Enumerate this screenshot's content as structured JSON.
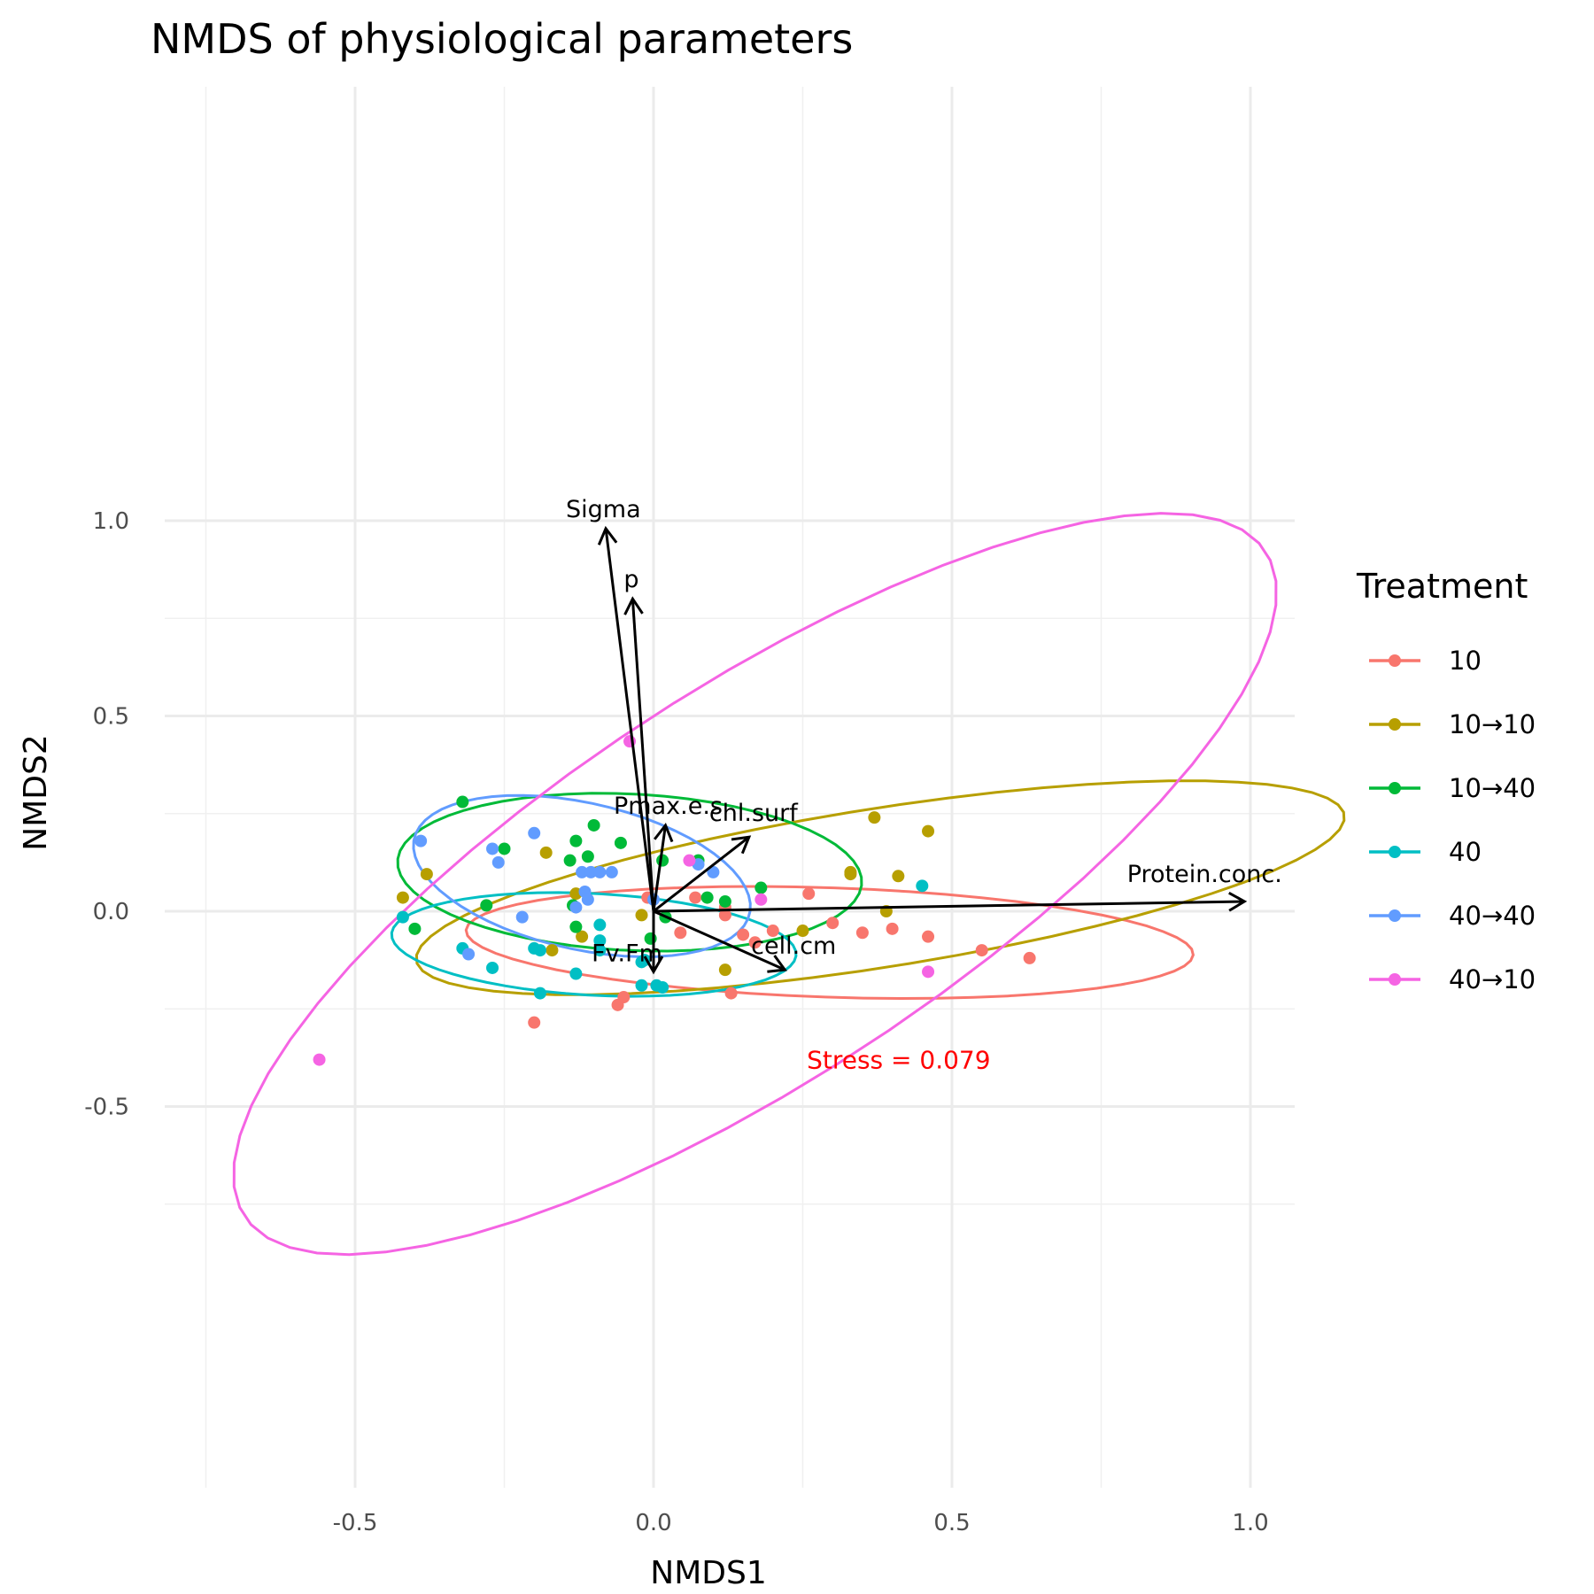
{
  "chart_data": {
    "type": "scatter",
    "title": "NMDS of physiological parameters",
    "xlabel": "NMDS1",
    "ylabel": "NMDS2",
    "xlim": [
      -0.75,
      1.07
    ],
    "ylim": [
      -0.72,
      1.05
    ],
    "x_ticks": [
      -0.5,
      0.0,
      0.5,
      1.0
    ],
    "x_tick_labels": [
      "-0.5",
      "0.0",
      "0.5",
      "1.0"
    ],
    "y_ticks": [
      -0.5,
      0.0,
      0.5,
      1.0
    ],
    "y_tick_labels": [
      "-0.5",
      "0.0",
      "0.5",
      "1.0"
    ],
    "grid": true,
    "legend": {
      "title": "Treatment",
      "position": "right"
    },
    "annotation": {
      "text": "Stress = 0.079",
      "x": 0.42,
      "y": -0.38,
      "color": "#ff0000"
    },
    "vectors": [
      {
        "label": "Sigma",
        "x": -0.08,
        "y": 0.98
      },
      {
        "label": "p",
        "x": -0.035,
        "y": 0.8
      },
      {
        "label": "Pmax.e.s",
        "x": 0.02,
        "y": 0.22
      },
      {
        "label": "chl.surf",
        "x": 0.16,
        "y": 0.19
      },
      {
        "label": "Protein.conc.",
        "x": 0.99,
        "y": 0.025
      },
      {
        "label": "Fv.Fm",
        "x": 0.0,
        "y": -0.155
      },
      {
        "label": "cell.cm",
        "x": 0.22,
        "y": -0.15
      }
    ],
    "series": [
      {
        "name": "10",
        "color": "#F8766D",
        "ellipse": {
          "cx": 0.295,
          "cy": -0.08,
          "rx": 0.61,
          "ry": 0.14,
          "angle": -3
        },
        "points": [
          [
            -0.01,
            0.035
          ],
          [
            0.07,
            0.035
          ],
          [
            0.12,
            0.01
          ],
          [
            0.12,
            -0.01
          ],
          [
            0.045,
            -0.055
          ],
          [
            0.15,
            -0.06
          ],
          [
            0.17,
            -0.08
          ],
          [
            0.2,
            -0.05
          ],
          [
            0.26,
            0.045
          ],
          [
            0.3,
            -0.03
          ],
          [
            0.35,
            -0.055
          ],
          [
            0.4,
            -0.045
          ],
          [
            0.46,
            -0.065
          ],
          [
            0.55,
            -0.1
          ],
          [
            0.63,
            -0.12
          ],
          [
            0.13,
            -0.21
          ],
          [
            -0.05,
            -0.22
          ],
          [
            -0.06,
            -0.24
          ],
          [
            -0.2,
            -0.285
          ]
        ]
      },
      {
        "name": "10→10",
        "color": "#B79F00",
        "ellipse": {
          "cx": 0.38,
          "cy": 0.06,
          "rx": 0.8,
          "ry": 0.2,
          "angle": 14
        },
        "points": [
          [
            0.37,
            0.24
          ],
          [
            0.46,
            0.205
          ],
          [
            0.33,
            0.1
          ],
          [
            0.33,
            0.095
          ],
          [
            0.41,
            0.09
          ],
          [
            0.39,
            0.0
          ],
          [
            0.25,
            -0.05
          ],
          [
            0.12,
            -0.15
          ],
          [
            -0.02,
            -0.01
          ],
          [
            -0.13,
            0.045
          ],
          [
            -0.12,
            -0.065
          ],
          [
            -0.17,
            -0.1
          ],
          [
            -0.18,
            0.15
          ],
          [
            -0.42,
            0.035
          ],
          [
            -0.38,
            0.095
          ]
        ]
      },
      {
        "name": "10→40",
        "color": "#00BA38",
        "ellipse": {
          "cx": -0.04,
          "cy": 0.1,
          "rx": 0.39,
          "ry": 0.2,
          "angle": -5
        },
        "points": [
          [
            -0.32,
            0.28
          ],
          [
            -0.1,
            0.22
          ],
          [
            -0.13,
            0.18
          ],
          [
            -0.055,
            0.175
          ],
          [
            -0.25,
            0.16
          ],
          [
            -0.11,
            0.14
          ],
          [
            -0.14,
            0.13
          ],
          [
            0.015,
            0.13
          ],
          [
            0.075,
            0.13
          ],
          [
            0.18,
            0.06
          ],
          [
            0.09,
            0.035
          ],
          [
            0.12,
            0.025
          ],
          [
            -0.135,
            0.015
          ],
          [
            -0.28,
            0.015
          ],
          [
            0.02,
            -0.015
          ],
          [
            -0.13,
            -0.04
          ],
          [
            -0.4,
            -0.045
          ],
          [
            -0.005,
            -0.07
          ]
        ]
      },
      {
        "name": "40",
        "color": "#00BFC4",
        "ellipse": {
          "cx": -0.1,
          "cy": -0.085,
          "rx": 0.34,
          "ry": 0.13,
          "angle": -5
        },
        "points": [
          [
            0.45,
            0.065
          ],
          [
            -0.42,
            -0.015
          ],
          [
            -0.09,
            -0.035
          ],
          [
            -0.09,
            -0.075
          ],
          [
            -0.32,
            -0.095
          ],
          [
            -0.2,
            -0.095
          ],
          [
            -0.19,
            -0.1
          ],
          [
            -0.09,
            -0.1
          ],
          [
            -0.27,
            -0.145
          ],
          [
            -0.13,
            -0.16
          ],
          [
            -0.02,
            -0.13
          ],
          [
            -0.015,
            -0.125
          ],
          [
            -0.02,
            -0.19
          ],
          [
            0.005,
            -0.19
          ],
          [
            0.015,
            -0.195
          ],
          [
            -0.19,
            -0.21
          ]
        ]
      },
      {
        "name": "40→40",
        "color": "#619CFF",
        "ellipse": {
          "cx": -0.12,
          "cy": 0.09,
          "rx": 0.3,
          "ry": 0.18,
          "angle": -25
        },
        "points": [
          [
            -0.39,
            0.18
          ],
          [
            -0.2,
            0.2
          ],
          [
            -0.27,
            0.16
          ],
          [
            -0.26,
            0.125
          ],
          [
            -0.12,
            0.1
          ],
          [
            -0.105,
            0.1
          ],
          [
            -0.09,
            0.1
          ],
          [
            -0.07,
            0.1
          ],
          [
            0.1,
            0.1
          ],
          [
            0.075,
            0.12
          ],
          [
            -0.115,
            0.05
          ],
          [
            -0.11,
            0.03
          ],
          [
            -0.13,
            0.01
          ],
          [
            -0.22,
            -0.015
          ],
          [
            -0.31,
            -0.11
          ],
          [
            0.0,
            0.03
          ]
        ]
      },
      {
        "name": "40→10",
        "color": "#F564E3",
        "ellipse": {
          "cx": 0.17,
          "cy": 0.07,
          "rx": 1.22,
          "ry": 0.42,
          "angle": 48
        },
        "points": [
          [
            -0.04,
            0.435
          ],
          [
            0.06,
            0.13
          ],
          [
            0.18,
            0.03
          ],
          [
            0.46,
            -0.155
          ],
          [
            -0.56,
            -0.38
          ]
        ]
      }
    ]
  }
}
